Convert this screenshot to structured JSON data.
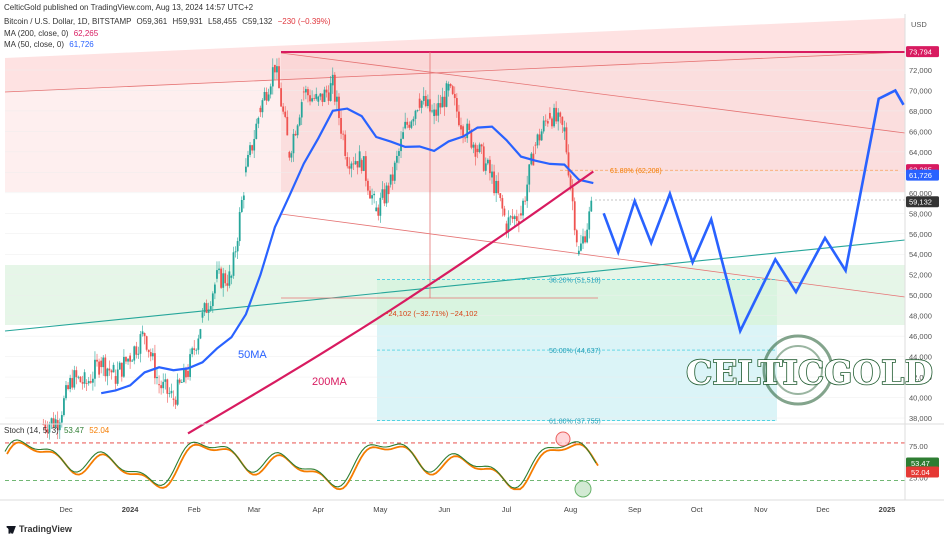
{
  "header": {
    "published": "CelticGold published on TradingView.com, Aug 13, 2024 14:57 UTC+2",
    "symbol": "Bitcoin / U.S. Dollar, 1D, BITSTAMP",
    "ohlc": {
      "o": "O59,361",
      "h": "H59,931",
      "l": "L58,455",
      "c": "C59,132",
      "chg": "−230 (−0.39%)"
    },
    "ma200_label": "MA (200, close, 0)",
    "ma200_value": "62,265",
    "ma50_label": "MA (50, close, 0)",
    "ma50_value": "61,726",
    "stoch_label": "Stoch (14, 5, 3)",
    "stoch_k": "53.47",
    "stoch_d": "52.04",
    "currency": "USD",
    "footer": "TradingView"
  },
  "colors": {
    "ma200": "#d81b60",
    "ma50": "#2962ff",
    "up": "#26a69a",
    "down": "#ef5350",
    "projection": "#2962ff",
    "trendline": "#26a69a",
    "channel": "#e57373",
    "stoch_k": "#2e7d32",
    "stoch_d": "#f57c00",
    "logo": "#1e5a2e"
  },
  "chart_data": {
    "type": "candlestick",
    "y_axis": {
      "ticks": [
        "72,000",
        "70,000",
        "68,000",
        "66,000",
        "64,000",
        "62,000",
        "60,000",
        "58,000",
        "56,000",
        "54,000",
        "52,000",
        "50,000",
        "48,000",
        "46,000",
        "44,000",
        "42,000",
        "40,000",
        "38,000"
      ],
      "price_badges": [
        {
          "label": "73,794",
          "value": 73794,
          "color": "#d81b60"
        },
        {
          "label": "62,265",
          "value": 62265,
          "color": "#d81b60"
        },
        {
          "label": "61,726",
          "value": 61726,
          "color": "#2962ff"
        },
        {
          "label": "59,132",
          "value": 59132,
          "color": "#333333"
        }
      ]
    },
    "x_axis": {
      "ticks": [
        "Dec",
        "2024",
        "Feb",
        "Mar",
        "Apr",
        "May",
        "Jun",
        "Jul",
        "Aug",
        "Sep",
        "Oct",
        "Nov",
        "Dec",
        "2025"
      ]
    },
    "series_close": [
      {
        "d": "2023-11-20",
        "c": 37400
      },
      {
        "d": "2023-11-27",
        "c": 37800
      },
      {
        "d": "2023-12-04",
        "c": 41900
      },
      {
        "d": "2023-12-11",
        "c": 41400
      },
      {
        "d": "2023-12-18",
        "c": 43600
      },
      {
        "d": "2023-12-25",
        "c": 42100
      },
      {
        "d": "2024-01-01",
        "c": 44100
      },
      {
        "d": "2024-01-08",
        "c": 46300
      },
      {
        "d": "2024-01-15",
        "c": 41300
      },
      {
        "d": "2024-01-22",
        "c": 39900
      },
      {
        "d": "2024-01-29",
        "c": 42600
      },
      {
        "d": "2024-02-05",
        "c": 47800
      },
      {
        "d": "2024-02-12",
        "c": 51600
      },
      {
        "d": "2024-02-19",
        "c": 51700
      },
      {
        "d": "2024-02-26",
        "c": 62000
      },
      {
        "d": "2024-03-04",
        "c": 68300
      },
      {
        "d": "2024-03-11",
        "c": 72500
      },
      {
        "d": "2024-03-18",
        "c": 64000
      },
      {
        "d": "2024-03-25",
        "c": 69900
      },
      {
        "d": "2024-04-01",
        "c": 68900
      },
      {
        "d": "2024-04-08",
        "c": 70500
      },
      {
        "d": "2024-04-15",
        "c": 63500
      },
      {
        "d": "2024-04-22",
        "c": 63200
      },
      {
        "d": "2024-04-29",
        "c": 58200
      },
      {
        "d": "2024-05-06",
        "c": 60800
      },
      {
        "d": "2024-05-13",
        "c": 66300
      },
      {
        "d": "2024-05-20",
        "c": 69200
      },
      {
        "d": "2024-05-27",
        "c": 67500
      },
      {
        "d": "2024-06-03",
        "c": 70000
      },
      {
        "d": "2024-06-10",
        "c": 66500
      },
      {
        "d": "2024-06-17",
        "c": 64300
      },
      {
        "d": "2024-06-24",
        "c": 61500
      },
      {
        "d": "2024-07-01",
        "c": 57000
      },
      {
        "d": "2024-07-08",
        "c": 58000
      },
      {
        "d": "2024-07-15",
        "c": 64700
      },
      {
        "d": "2024-07-22",
        "c": 67800
      },
      {
        "d": "2024-07-29",
        "c": 66000
      },
      {
        "d": "2024-08-05",
        "c": 54000
      },
      {
        "d": "2024-08-12",
        "c": 59132
      }
    ],
    "projection": [
      {
        "d": "2024-08-17",
        "v": 58000
      },
      {
        "d": "2024-08-24",
        "v": 54200
      },
      {
        "d": "2024-09-01",
        "v": 59200
      },
      {
        "d": "2024-09-09",
        "v": 55100
      },
      {
        "d": "2024-09-18",
        "v": 59900
      },
      {
        "d": "2024-09-29",
        "v": 53200
      },
      {
        "d": "2024-10-08",
        "v": 57400
      },
      {
        "d": "2024-10-22",
        "v": 46500
      },
      {
        "d": "2024-11-08",
        "v": 53500
      },
      {
        "d": "2024-11-18",
        "v": 50300
      },
      {
        "d": "2024-12-02",
        "v": 55600
      },
      {
        "d": "2024-12-12",
        "v": 52400
      },
      {
        "d": "2024-12-28",
        "v": 69200
      },
      {
        "d": "2025-01-05",
        "v": 70000
      },
      {
        "d": "2025-01-09",
        "v": 68600
      }
    ],
    "annotations": [
      {
        "text": "61.80% (62,208)",
        "value": 62208
      },
      {
        "text": "38.20% (51,518)",
        "value": 51518
      },
      {
        "text": "50.00% (44,637)",
        "value": 44637
      },
      {
        "text": "61.80% (37,755)",
        "value": 37755
      },
      {
        "text": "−24,102 (−32.71%) −24,102"
      },
      {
        "text": "50MA"
      },
      {
        "text": "200MA"
      }
    ],
    "stochastic": {
      "ticks": [
        "75.00",
        "50.00",
        "25.00"
      ],
      "levels": [
        80,
        20
      ]
    },
    "logo_text": "CELTICGOLD"
  }
}
